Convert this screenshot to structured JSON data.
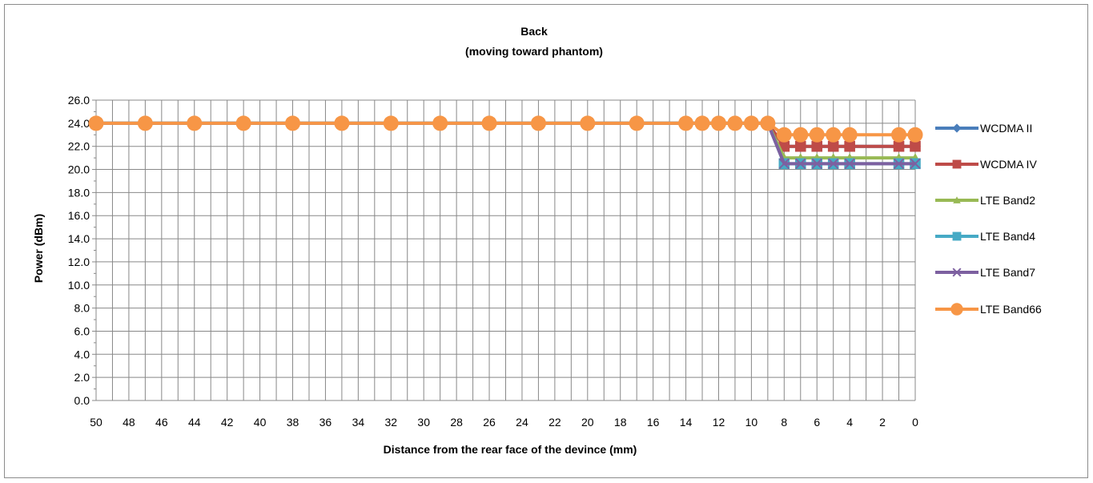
{
  "chart_data": {
    "type": "line",
    "title": "Back",
    "subtitle": "(moving toward phantom)",
    "xlabel": "Distance from the rear face of the devince (mm)",
    "ylabel": "Power (dBm)",
    "ylim": [
      0,
      26
    ],
    "y_ticks": [
      "0.0",
      "2.0",
      "4.0",
      "6.0",
      "8.0",
      "10.0",
      "12.0",
      "14.0",
      "16.0",
      "18.0",
      "20.0",
      "22.0",
      "24.0",
      "26.0"
    ],
    "x": [
      50,
      47,
      44,
      41,
      38,
      35,
      32,
      29,
      26,
      23,
      20,
      17,
      14,
      13,
      12,
      11,
      10,
      9,
      8,
      7,
      6,
      5,
      4,
      1,
      0
    ],
    "x_tick_labels": [
      "50",
      "48",
      "46",
      "44",
      "42",
      "40",
      "38",
      "36",
      "34",
      "32",
      "30",
      "28",
      "26",
      "24",
      "22",
      "20",
      "18",
      "16",
      "14",
      "12",
      "10",
      "8",
      "6",
      "4",
      "2",
      "0"
    ],
    "x_axis_reversed": true,
    "grid": true,
    "legend_position": "right",
    "series": [
      {
        "name": "WCDMA II",
        "color": "#4a7ebb",
        "marker": "diamond",
        "values": [
          24,
          24,
          24,
          24,
          24,
          24,
          24,
          24,
          24,
          24,
          24,
          24,
          24,
          24,
          24,
          24,
          24,
          24,
          22,
          22,
          22,
          22,
          22,
          22,
          22
        ]
      },
      {
        "name": "WCDMA IV",
        "color": "#be4b48",
        "marker": "square",
        "values": [
          24,
          24,
          24,
          24,
          24,
          24,
          24,
          24,
          24,
          24,
          24,
          24,
          24,
          24,
          24,
          24,
          24,
          24,
          22,
          22,
          22,
          22,
          22,
          22,
          22
        ]
      },
      {
        "name": "LTE Band2",
        "color": "#98b954",
        "marker": "triangle",
        "values": [
          24,
          24,
          24,
          24,
          24,
          24,
          24,
          24,
          24,
          24,
          24,
          24,
          24,
          24,
          24,
          24,
          24,
          24,
          21,
          21,
          21,
          21,
          21,
          21,
          21
        ]
      },
      {
        "name": "LTE Band4",
        "color": "#46aac5",
        "marker": "square",
        "values": [
          24,
          24,
          24,
          24,
          24,
          24,
          24,
          24,
          24,
          24,
          24,
          24,
          24,
          24,
          24,
          24,
          24,
          24,
          20.5,
          20.5,
          20.5,
          20.5,
          20.5,
          20.5,
          20.5
        ]
      },
      {
        "name": "LTE Band7",
        "color": "#7d60a0",
        "marker": "x",
        "values": [
          24,
          24,
          24,
          24,
          24,
          24,
          24,
          24,
          24,
          24,
          24,
          24,
          24,
          24,
          24,
          24,
          24,
          24,
          20.5,
          20.5,
          20.5,
          20.5,
          20.5,
          20.5,
          20.5
        ]
      },
      {
        "name": "LTE Band66",
        "color": "#f79646",
        "marker": "circle",
        "values": [
          24,
          24,
          24,
          24,
          24,
          24,
          24,
          24,
          24,
          24,
          24,
          24,
          24,
          24,
          24,
          24,
          24,
          24,
          23,
          23,
          23,
          23,
          23,
          23,
          23
        ]
      }
    ]
  }
}
